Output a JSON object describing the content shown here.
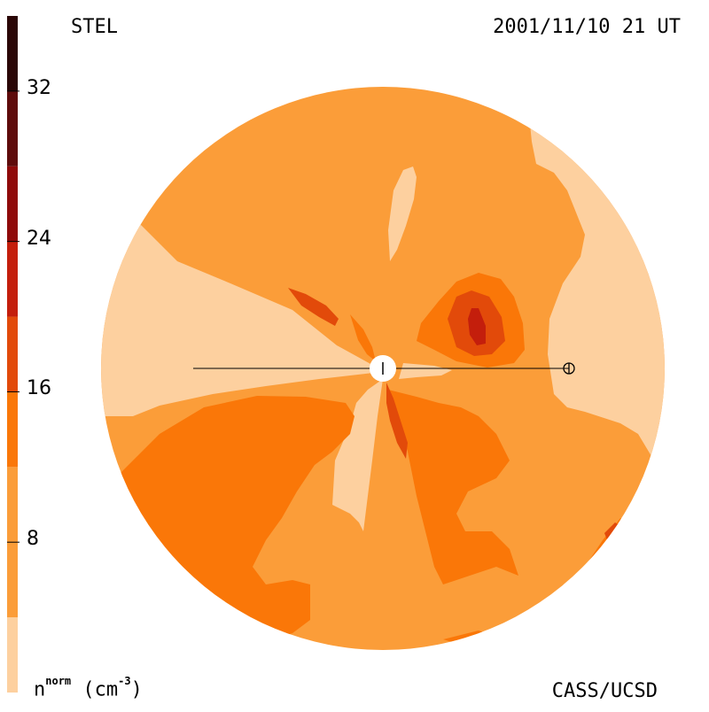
{
  "header": {
    "observer": "STEL",
    "timestamp": "2001/11/10 21 UT"
  },
  "footer": {
    "credit": "CASS/UCSD",
    "quantity": "n",
    "quantity_sup": "norm",
    "unit_open": "(cm",
    "unit_sup": "-3",
    "unit_close": ")"
  },
  "colorbar": {
    "ticks": [
      "32",
      "24",
      "16",
      "8"
    ],
    "tick_values": [
      32,
      24,
      16,
      8
    ],
    "range": [
      0,
      36
    ],
    "bands": [
      {
        "min": 0,
        "max": 4,
        "color": "#fdd09f"
      },
      {
        "min": 4,
        "max": 12,
        "color": "#fb9d39"
      },
      {
        "min": 12,
        "max": 16,
        "color": "#fa7708"
      },
      {
        "min": 16,
        "max": 20,
        "color": "#e24a0a"
      },
      {
        "min": 20,
        "max": 24,
        "color": "#c41e0c"
      },
      {
        "min": 24,
        "max": 28,
        "color": "#8f0a0a"
      },
      {
        "min": 28,
        "max": 32,
        "color": "#5e0b0b"
      },
      {
        "min": 32,
        "max": 36,
        "color": "#2a0606"
      }
    ]
  },
  "colors": {
    "lightest": "#fdd09f",
    "light": "#fb9d39",
    "medium": "#fa7708",
    "dark": "#e24a0a",
    "darker": "#c41e0c",
    "background": "#ffffff"
  },
  "markers": {
    "sun_icon": "sun-disk-icon",
    "earth_icon": "earth-circle-cross-icon"
  }
}
